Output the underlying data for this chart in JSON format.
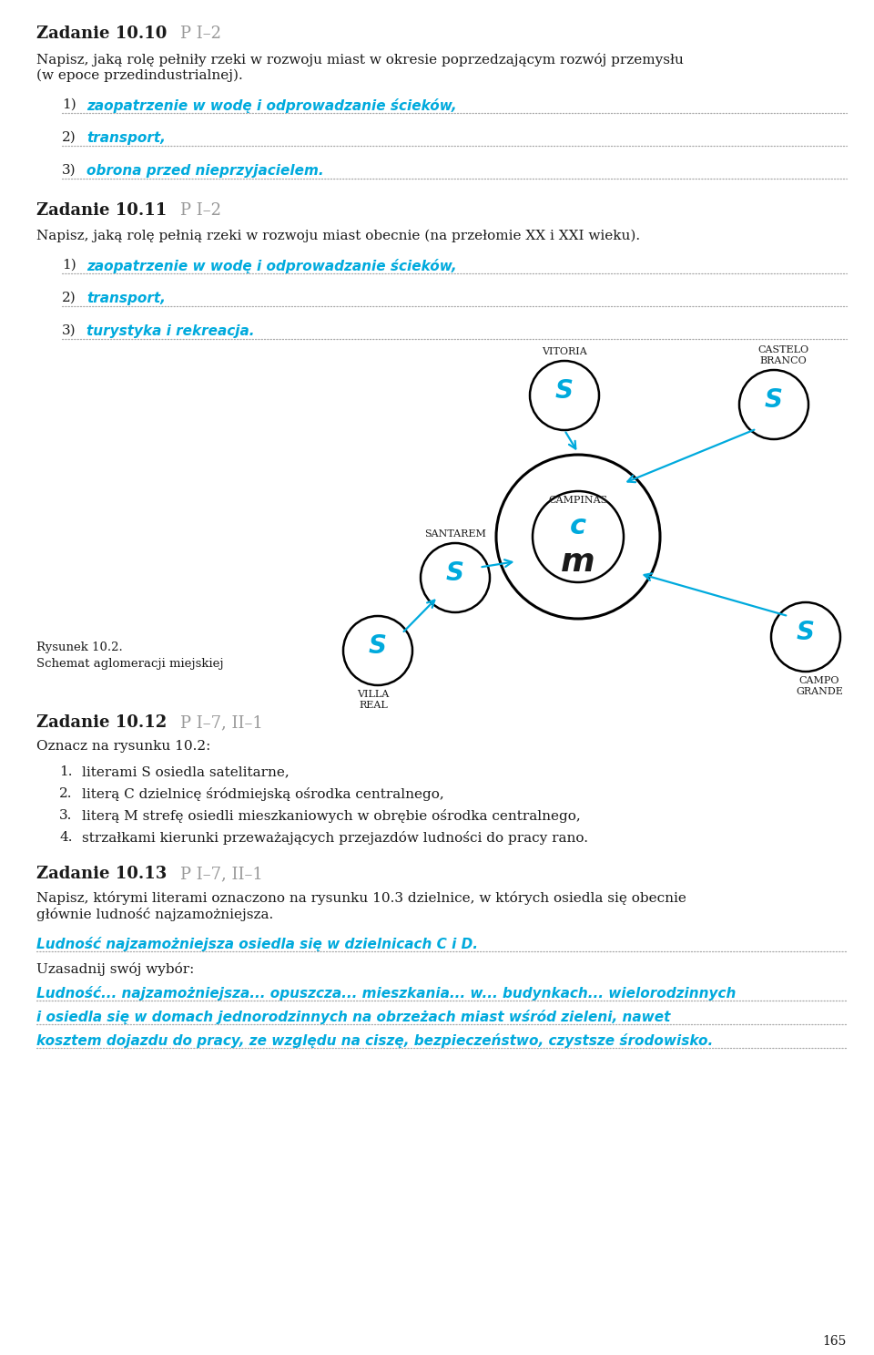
{
  "bg_color": "#ffffff",
  "text_color": "#2d2d2d",
  "cyan_color": "#00aadd",
  "black_color": "#1a1a1a",
  "gray_color": "#999999",
  "title1": "Zadanie 10.10",
  "title1_badge": "P I–2",
  "body1a": "Napisz, jaką rolę pełniły rzeki w rozwoju miast w okresie poprzedzającym rozwój przemysłu",
  "body1b": "(w epoce przedindustrialnej).",
  "ans1_1": "zaopatrzenie w wodę i odprowadzanie ścieków,",
  "ans1_2": "transport,",
  "ans1_3": "obrona przed nieprzyjacielem.",
  "title2": "Zadanie 10.11",
  "title2_badge": "P I–2",
  "body2": "Napisz, jaką rolę pełnią rzeki w rozwoju miast obecnie (na przełomie XX i XXI wieku).",
  "ans2_1": "zaopatrzenie w wodę i odprowadzanie ścieków,",
  "ans2_2": "transport,",
  "ans2_3": "turystyka i rekreacja.",
  "fig_caption_line1": "Rysunek 10.2.",
  "fig_caption_line2": "Schemat aglomeracji miejskiej",
  "title3": "Zadanie 10.12",
  "title3_badge": "P I–7, II–1",
  "body3": "Oznacz na rysunku 10.2:",
  "ans3_1": "literami S osiedla satelitarne,",
  "ans3_2": "literą C dzielnicę śródmiejską ośrodka centralnego,",
  "ans3_3": "literą M strefę osiedli mieszkaniowych w obrębie ośrodka centralnego,",
  "ans3_4": "strzałkami kierunki przeważających przejazdów ludności do pracy rano.",
  "title4": "Zadanie 10.13",
  "title4_badge": "P I–7, II–1",
  "body4a": "Napisz, którymi literami oznaczono na rysunku 10.3 dzielnice, w których osiedla się obecnie",
  "body4b": "głównie ludność najzamożniejsza.",
  "ans4_1": "Ludność najzamożniejsza osiedla się w dzielnicach C i D.",
  "ans4_2": "Uzasadnij swój wybór:",
  "ans4_3_line1": "Ludność... najzamożniejsza... opuszcza... mieszkania... w... budynkach... wielorodzinnych",
  "ans4_3_line2": "i osiedla się w domach jednorodzinnych na obrzeżach miast wśród zieleni, nawet",
  "ans4_3_line3": "kosztem dojazdu do pracy, ze względu na ciszę, bezpieczeństwo, czystsze środowisko.",
  "page_number": "165"
}
